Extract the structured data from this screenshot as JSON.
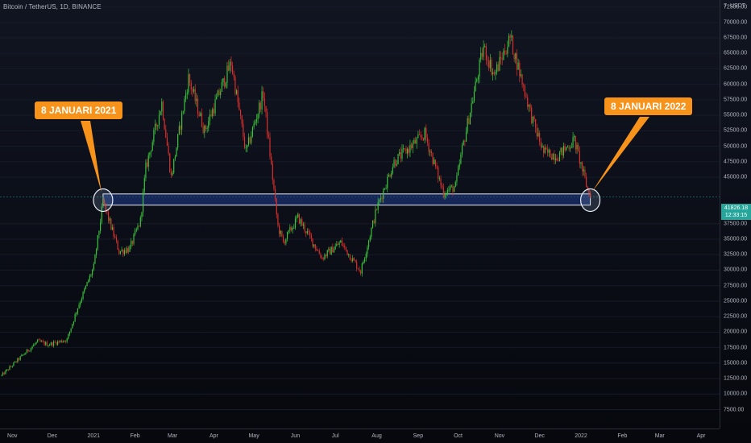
{
  "header": {
    "symbol": "Bitcoin / TetherUS, 1D, BINANCE"
  },
  "price_scale": {
    "currency": "USDT",
    "mode_symbol": "7",
    "ticks": [
      "72500.00",
      "70000.00",
      "67500.00",
      "65000.00",
      "62500.00",
      "60000.00",
      "57500.00",
      "55000.00",
      "52500.00",
      "50000.00",
      "47500.00",
      "45000.00",
      "37500.00",
      "35000.00",
      "32500.00",
      "30000.00",
      "27500.00",
      "25000.00",
      "22500.00",
      "20000.00",
      "17500.00",
      "15000.00",
      "12500.00",
      "10000.00",
      "7500.00"
    ],
    "current_price": "41826.18",
    "countdown": "12:33:15"
  },
  "time_scale": {
    "ticks": [
      "Nov",
      "Dec",
      "2021",
      "Feb",
      "Mar",
      "Apr",
      "May",
      "Jun",
      "Jul",
      "Aug",
      "Sep",
      "Oct",
      "Nov",
      "Dec",
      "2022",
      "Feb",
      "Mar",
      "Apr"
    ]
  },
  "annotations": {
    "left_callout": "8 JANUARI 2021",
    "right_callout": "8 JANUARI 2022"
  },
  "colors": {
    "up": "#26a69a",
    "down": "#ef5350",
    "up_candle": "#3cc63c",
    "down_candle": "#e0302b",
    "callout": "#f7931a",
    "zone_fill": "#1e3a8a",
    "zone_border": "#e8edf5"
  },
  "chart_data": {
    "type": "candlestick",
    "symbol": "Bitcoin / TetherUS",
    "interval": "1D",
    "exchange": "BINANCE",
    "x_range": [
      "2020-10-24",
      "2022-04-10"
    ],
    "ylim": [
      5000,
      74000
    ],
    "anchors": [
      {
        "date": "2020-10-24",
        "close": 13000
      },
      {
        "date": "2020-11-05",
        "close": 15500
      },
      {
        "date": "2020-11-20",
        "close": 18500
      },
      {
        "date": "2020-11-28",
        "close": 18000
      },
      {
        "date": "2020-12-12",
        "close": 18800
      },
      {
        "date": "2020-12-20",
        "close": 24000
      },
      {
        "date": "2021-01-01",
        "close": 30500
      },
      {
        "date": "2021-01-08",
        "close": 41000
      },
      {
        "date": "2021-01-20",
        "close": 33000
      },
      {
        "date": "2021-01-28",
        "close": 33500
      },
      {
        "date": "2021-02-05",
        "close": 38000
      },
      {
        "date": "2021-02-09",
        "close": 46500
      },
      {
        "date": "2021-02-21",
        "close": 57000
      },
      {
        "date": "2021-02-28",
        "close": 45000
      },
      {
        "date": "2021-03-13",
        "close": 61000
      },
      {
        "date": "2021-03-25",
        "close": 52500
      },
      {
        "date": "2021-04-14",
        "close": 63500
      },
      {
        "date": "2021-04-25",
        "close": 49000
      },
      {
        "date": "2021-05-08",
        "close": 58500
      },
      {
        "date": "2021-05-19",
        "close": 37000
      },
      {
        "date": "2021-05-23",
        "close": 34500
      },
      {
        "date": "2021-06-03",
        "close": 38500
      },
      {
        "date": "2021-06-21",
        "close": 32000
      },
      {
        "date": "2021-07-05",
        "close": 34500
      },
      {
        "date": "2021-07-20",
        "close": 29800
      },
      {
        "date": "2021-08-01",
        "close": 40000
      },
      {
        "date": "2021-08-14",
        "close": 47500
      },
      {
        "date": "2021-09-06",
        "close": 52000
      },
      {
        "date": "2021-09-20",
        "close": 42500
      },
      {
        "date": "2021-09-29",
        "close": 43500
      },
      {
        "date": "2021-10-04",
        "close": 49500
      },
      {
        "date": "2021-10-20",
        "close": 66000
      },
      {
        "date": "2021-10-28",
        "close": 61500
      },
      {
        "date": "2021-11-09",
        "close": 67500
      },
      {
        "date": "2021-11-26",
        "close": 54000
      },
      {
        "date": "2021-12-04",
        "close": 49000
      },
      {
        "date": "2021-12-15",
        "close": 48500
      },
      {
        "date": "2021-12-27",
        "close": 51000
      },
      {
        "date": "2022-01-06",
        "close": 43000
      },
      {
        "date": "2022-01-08",
        "close": 41826.18
      }
    ],
    "support_zone": {
      "from_date": "2021-01-08",
      "to_date": "2022-01-08",
      "low": 40500,
      "high": 42300
    },
    "current_price": 41826.18
  }
}
